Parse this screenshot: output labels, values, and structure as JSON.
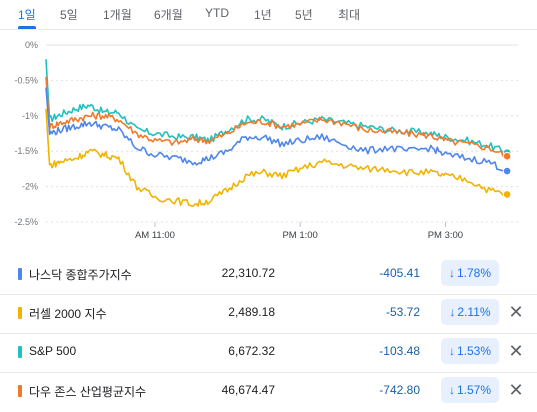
{
  "tabs": [
    "1일",
    "5일",
    "1개월",
    "6개월",
    "YTD",
    "1년",
    "5년",
    "최대"
  ],
  "active_tab": "1일",
  "colors": {
    "nasdaq": "#4f86ec",
    "russell": "#f0b400",
    "sp500": "#21c0c0",
    "dow": "#f07a2a",
    "accent": "#1a73e8",
    "negative": "#1a5fa8"
  },
  "chart_data": {
    "type": "line",
    "x_tick_labels": [
      "AM 11:00",
      "PM 1:00",
      "PM 3:00"
    ],
    "x_ticks": [
      11.0,
      13.0,
      15.0
    ],
    "xlim": [
      9.5,
      16.0
    ],
    "y_tick_labels": [
      "0%",
      "-0.5%",
      "-1%",
      "-1.5%",
      "-2%",
      "-2.5%"
    ],
    "y_ticks": [
      0,
      -0.5,
      -1,
      -1.5,
      -2,
      -2.5
    ],
    "ylim": [
      -2.5,
      0
    ],
    "grid": true,
    "series": [
      {
        "name": "S&P 500",
        "color_key": "sp500",
        "points": [
          [
            9.5,
            -0.2
          ],
          [
            9.55,
            -1.05
          ],
          [
            9.7,
            -0.98
          ],
          [
            9.9,
            -0.9
          ],
          [
            10.1,
            -0.85
          ],
          [
            10.3,
            -0.95
          ],
          [
            10.5,
            -0.95
          ],
          [
            10.75,
            -1.2
          ],
          [
            11.0,
            -1.25
          ],
          [
            11.3,
            -1.3
          ],
          [
            11.55,
            -1.3
          ],
          [
            11.75,
            -1.35
          ],
          [
            12.0,
            -1.2
          ],
          [
            12.25,
            -1.05
          ],
          [
            12.5,
            -1.05
          ],
          [
            12.75,
            -1.15
          ],
          [
            13.0,
            -1.1
          ],
          [
            13.3,
            -1.05
          ],
          [
            13.6,
            -1.1
          ],
          [
            13.9,
            -1.15
          ],
          [
            14.2,
            -1.2
          ],
          [
            14.5,
            -1.22
          ],
          [
            14.8,
            -1.25
          ],
          [
            15.0,
            -1.3
          ],
          [
            15.3,
            -1.35
          ],
          [
            15.6,
            -1.42
          ],
          [
            15.85,
            -1.52
          ]
        ],
        "end_value": -1.53
      },
      {
        "name": "다우 존스 산업평균지수",
        "color_key": "dow",
        "points": [
          [
            9.5,
            -0.45
          ],
          [
            9.55,
            -1.15
          ],
          [
            9.7,
            -1.1
          ],
          [
            9.9,
            -1.05
          ],
          [
            10.1,
            -1.0
          ],
          [
            10.3,
            -1.0
          ],
          [
            10.5,
            -1.05
          ],
          [
            10.75,
            -1.25
          ],
          [
            11.0,
            -1.35
          ],
          [
            11.3,
            -1.38
          ],
          [
            11.55,
            -1.33
          ],
          [
            11.75,
            -1.35
          ],
          [
            12.0,
            -1.25
          ],
          [
            12.25,
            -1.1
          ],
          [
            12.5,
            -1.08
          ],
          [
            12.75,
            -1.15
          ],
          [
            13.0,
            -1.12
          ],
          [
            13.3,
            -1.05
          ],
          [
            13.6,
            -1.1
          ],
          [
            13.9,
            -1.2
          ],
          [
            14.2,
            -1.22
          ],
          [
            14.5,
            -1.25
          ],
          [
            14.8,
            -1.28
          ],
          [
            15.0,
            -1.35
          ],
          [
            15.3,
            -1.4
          ],
          [
            15.6,
            -1.45
          ],
          [
            15.85,
            -1.57
          ]
        ],
        "end_value": -1.57
      },
      {
        "name": "나스닥 종합주가지수",
        "color_key": "nasdaq",
        "points": [
          [
            9.5,
            -0.6
          ],
          [
            9.55,
            -1.25
          ],
          [
            9.7,
            -1.2
          ],
          [
            9.9,
            -1.15
          ],
          [
            10.1,
            -1.1
          ],
          [
            10.3,
            -1.15
          ],
          [
            10.5,
            -1.2
          ],
          [
            10.75,
            -1.45
          ],
          [
            11.0,
            -1.55
          ],
          [
            11.3,
            -1.6
          ],
          [
            11.55,
            -1.65
          ],
          [
            11.75,
            -1.6
          ],
          [
            12.0,
            -1.5
          ],
          [
            12.25,
            -1.3
          ],
          [
            12.5,
            -1.3
          ],
          [
            12.75,
            -1.4
          ],
          [
            13.0,
            -1.35
          ],
          [
            13.3,
            -1.3
          ],
          [
            13.6,
            -1.4
          ],
          [
            13.9,
            -1.5
          ],
          [
            14.2,
            -1.45
          ],
          [
            14.5,
            -1.5
          ],
          [
            14.8,
            -1.45
          ],
          [
            15.0,
            -1.55
          ],
          [
            15.3,
            -1.6
          ],
          [
            15.6,
            -1.65
          ],
          [
            15.85,
            -1.78
          ]
        ],
        "end_value": -1.78
      },
      {
        "name": "러셀 2000 지수",
        "color_key": "russell",
        "points": [
          [
            9.5,
            -0.9
          ],
          [
            9.55,
            -1.7
          ],
          [
            9.7,
            -1.65
          ],
          [
            9.9,
            -1.6
          ],
          [
            10.1,
            -1.5
          ],
          [
            10.3,
            -1.55
          ],
          [
            10.5,
            -1.6
          ],
          [
            10.75,
            -2.0
          ],
          [
            11.0,
            -2.15
          ],
          [
            11.3,
            -2.2
          ],
          [
            11.55,
            -2.25
          ],
          [
            11.75,
            -2.2
          ],
          [
            12.0,
            -2.05
          ],
          [
            12.25,
            -1.85
          ],
          [
            12.5,
            -1.8
          ],
          [
            12.75,
            -1.85
          ],
          [
            13.0,
            -1.75
          ],
          [
            13.3,
            -1.65
          ],
          [
            13.6,
            -1.7
          ],
          [
            13.9,
            -1.75
          ],
          [
            14.2,
            -1.75
          ],
          [
            14.5,
            -1.8
          ],
          [
            14.8,
            -1.8
          ],
          [
            15.0,
            -1.85
          ],
          [
            15.3,
            -1.9
          ],
          [
            15.6,
            -2.05
          ],
          [
            15.85,
            -2.11
          ]
        ],
        "end_value": -2.11
      }
    ]
  },
  "rows": [
    {
      "name": "나스닥 종합주가지수",
      "value": "22,310.72",
      "change": "-405.41",
      "pct": "1.78%",
      "color_key": "nasdaq",
      "removable": false
    },
    {
      "name": "러셀 2000 지수",
      "value": "2,489.18",
      "change": "-53.72",
      "pct": "2.11%",
      "color_key": "russell",
      "removable": true
    },
    {
      "name": "S&P 500",
      "value": "6,672.32",
      "change": "-103.48",
      "pct": "1.53%",
      "color_key": "sp500",
      "removable": true
    },
    {
      "name": "다우 존스 산업평균지수",
      "value": "46,674.47",
      "change": "-742.80",
      "pct": "1.57%",
      "color_key": "dow",
      "removable": true
    }
  ],
  "icons": {
    "down_arrow": "down-arrow-icon",
    "close": "close-icon"
  },
  "glyphs": {
    "down_arrow": "↓",
    "close": "✕"
  }
}
